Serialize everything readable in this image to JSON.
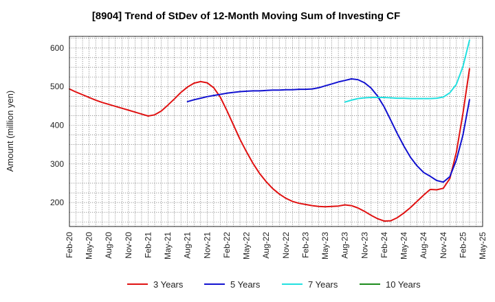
{
  "chart_data": {
    "type": "line",
    "title": "[8904]  Trend of StDev of 12-Month Moving Sum of Investing CF",
    "xlabel": "",
    "ylabel": "Amount (million yen)",
    "ylim": [
      138,
      630
    ],
    "yticks": [
      200,
      300,
      400,
      500,
      600
    ],
    "xlim": [
      "2020-02",
      "2025-05"
    ],
    "categories": [
      "Feb-20",
      "May-20",
      "Aug-20",
      "Nov-20",
      "Feb-21",
      "May-21",
      "Aug-21",
      "Nov-21",
      "Feb-22",
      "May-22",
      "Aug-22",
      "Nov-22",
      "Feb-23",
      "May-23",
      "Aug-23",
      "Nov-23",
      "Feb-24",
      "May-24",
      "Aug-24",
      "Nov-24",
      "Feb-25",
      "May-25"
    ],
    "grid": true,
    "legend_position": "bottom",
    "series": [
      {
        "name": "3 Years",
        "color": "#e01010",
        "points": [
          [
            "2020-02",
            494
          ],
          [
            "2020-03",
            486
          ],
          [
            "2020-04",
            479
          ],
          [
            "2020-05",
            472
          ],
          [
            "2020-06",
            465
          ],
          [
            "2020-07",
            459
          ],
          [
            "2020-08",
            454
          ],
          [
            "2020-09",
            449
          ],
          [
            "2020-10",
            444
          ],
          [
            "2020-11",
            439
          ],
          [
            "2020-12",
            434
          ],
          [
            "2021-01",
            429
          ],
          [
            "2021-02",
            424
          ],
          [
            "2021-03",
            427
          ],
          [
            "2021-04",
            437
          ],
          [
            "2021-05",
            452
          ],
          [
            "2021-06",
            468
          ],
          [
            "2021-07",
            485
          ],
          [
            "2021-08",
            499
          ],
          [
            "2021-09",
            509
          ],
          [
            "2021-10",
            513
          ],
          [
            "2021-11",
            510
          ],
          [
            "2021-12",
            497
          ],
          [
            "2022-01",
            473
          ],
          [
            "2022-02",
            438
          ],
          [
            "2022-03",
            401
          ],
          [
            "2022-04",
            364
          ],
          [
            "2022-05",
            331
          ],
          [
            "2022-06",
            301
          ],
          [
            "2022-07",
            275
          ],
          [
            "2022-08",
            254
          ],
          [
            "2022-09",
            236
          ],
          [
            "2022-10",
            222
          ],
          [
            "2022-11",
            211
          ],
          [
            "2022-12",
            203
          ],
          [
            "2023-01",
            198
          ],
          [
            "2023-02",
            195
          ],
          [
            "2023-03",
            192
          ],
          [
            "2023-04",
            190
          ],
          [
            "2023-05",
            189
          ],
          [
            "2023-06",
            190
          ],
          [
            "2023-07",
            191
          ],
          [
            "2023-08",
            194
          ],
          [
            "2023-09",
            192
          ],
          [
            "2023-10",
            186
          ],
          [
            "2023-11",
            177
          ],
          [
            "2023-12",
            167
          ],
          [
            "2024-01",
            158
          ],
          [
            "2024-02",
            152
          ],
          [
            "2024-03",
            153
          ],
          [
            "2024-04",
            161
          ],
          [
            "2024-05",
            173
          ],
          [
            "2024-06",
            187
          ],
          [
            "2024-07",
            203
          ],
          [
            "2024-08",
            219
          ],
          [
            "2024-09",
            234
          ],
          [
            "2024-10",
            233
          ],
          [
            "2024-11",
            237
          ],
          [
            "2024-12",
            262
          ],
          [
            "2025-01",
            330
          ],
          [
            "2025-02",
            431
          ],
          [
            "2025-03",
            546
          ]
        ]
      },
      {
        "name": "5 Years",
        "color": "#1010d0",
        "points": [
          [
            "2021-08",
            461
          ],
          [
            "2021-09",
            466
          ],
          [
            "2021-10",
            470
          ],
          [
            "2021-11",
            474
          ],
          [
            "2021-12",
            477
          ],
          [
            "2022-01",
            480
          ],
          [
            "2022-02",
            483
          ],
          [
            "2022-03",
            485
          ],
          [
            "2022-04",
            487
          ],
          [
            "2022-05",
            488
          ],
          [
            "2022-06",
            489
          ],
          [
            "2022-07",
            489
          ],
          [
            "2022-08",
            490
          ],
          [
            "2022-09",
            491
          ],
          [
            "2022-10",
            491
          ],
          [
            "2022-11",
            492
          ],
          [
            "2022-12",
            492
          ],
          [
            "2023-01",
            493
          ],
          [
            "2023-02",
            493
          ],
          [
            "2023-03",
            494
          ],
          [
            "2023-04",
            497
          ],
          [
            "2023-05",
            502
          ],
          [
            "2023-06",
            507
          ],
          [
            "2023-07",
            512
          ],
          [
            "2023-08",
            516
          ],
          [
            "2023-09",
            520
          ],
          [
            "2023-10",
            518
          ],
          [
            "2023-11",
            510
          ],
          [
            "2023-12",
            496
          ],
          [
            "2024-01",
            475
          ],
          [
            "2024-02",
            447
          ],
          [
            "2024-03",
            413
          ],
          [
            "2024-04",
            378
          ],
          [
            "2024-05",
            346
          ],
          [
            "2024-06",
            317
          ],
          [
            "2024-07",
            295
          ],
          [
            "2024-08",
            278
          ],
          [
            "2024-09",
            268
          ],
          [
            "2024-10",
            257
          ],
          [
            "2024-11",
            253
          ],
          [
            "2024-12",
            267
          ],
          [
            "2025-01",
            310
          ],
          [
            "2025-02",
            375
          ],
          [
            "2025-03",
            466
          ]
        ]
      },
      {
        "name": "7 Years",
        "color": "#20e0e0",
        "points": [
          [
            "2023-08",
            460
          ],
          [
            "2023-09",
            465
          ],
          [
            "2023-10",
            469
          ],
          [
            "2023-11",
            471
          ],
          [
            "2023-12",
            472
          ],
          [
            "2024-01",
            472
          ],
          [
            "2024-02",
            472
          ],
          [
            "2024-03",
            471
          ],
          [
            "2024-04",
            470
          ],
          [
            "2024-05",
            470
          ],
          [
            "2024-06",
            469
          ],
          [
            "2024-07",
            469
          ],
          [
            "2024-08",
            469
          ],
          [
            "2024-09",
            469
          ],
          [
            "2024-10",
            470
          ],
          [
            "2024-11",
            473
          ],
          [
            "2024-12",
            484
          ],
          [
            "2025-01",
            506
          ],
          [
            "2025-02",
            552
          ],
          [
            "2025-03",
            620
          ]
        ]
      },
      {
        "name": "10 Years",
        "color": "#1a8a1a",
        "points": []
      }
    ]
  }
}
